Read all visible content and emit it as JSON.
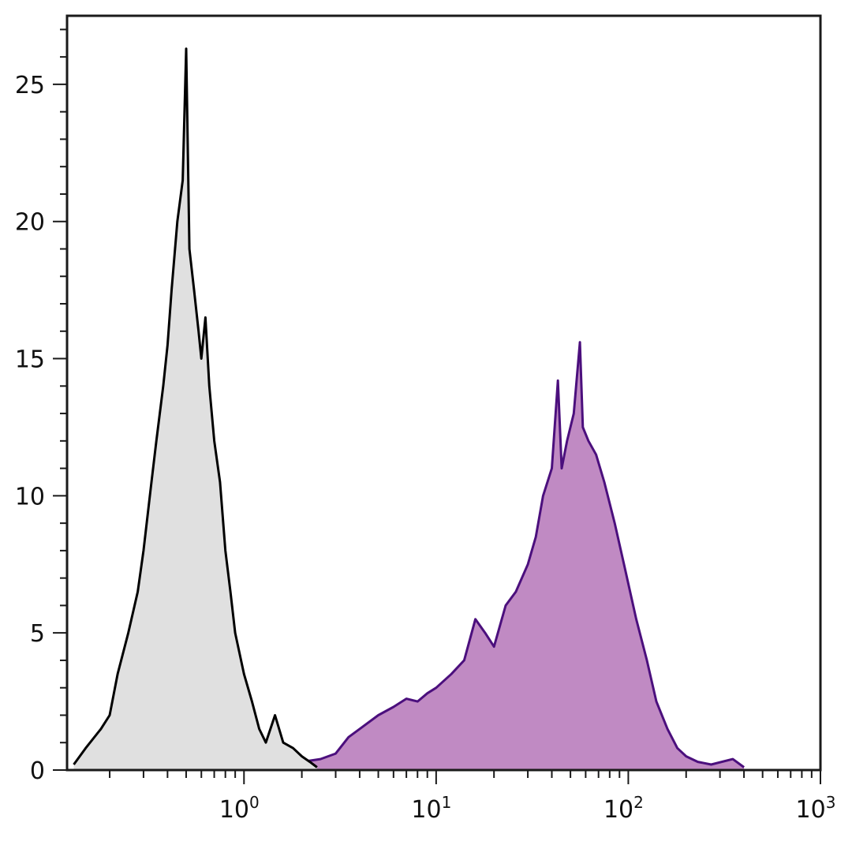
{
  "chart_data": {
    "type": "area",
    "title": "",
    "xlabel": "",
    "ylabel": "",
    "x_scale": "log",
    "xlim": [
      0.12,
      1000
    ],
    "ylim": [
      0,
      27.5
    ],
    "grid": false,
    "legend": "none",
    "x_tick_labels": [
      {
        "base": "10",
        "exp": "0",
        "value": 1
      },
      {
        "base": "10",
        "exp": "1",
        "value": 10
      },
      {
        "base": "10",
        "exp": "2",
        "value": 100
      },
      {
        "base": "10",
        "exp": "3",
        "value": 1000
      }
    ],
    "y_tick_labels": [
      {
        "label": "0",
        "value": 0
      },
      {
        "label": "5",
        "value": 5
      },
      {
        "label": "10",
        "value": 10
      },
      {
        "label": "15",
        "value": 15
      },
      {
        "label": "20",
        "value": 20
      },
      {
        "label": "25",
        "value": 25
      }
    ],
    "series": [
      {
        "key": "control",
        "color": "#000000",
        "fill": "#e0e0e0",
        "x": [
          0.13,
          0.15,
          0.18,
          0.2,
          0.22,
          0.25,
          0.28,
          0.3,
          0.33,
          0.35,
          0.38,
          0.4,
          0.42,
          0.45,
          0.48,
          0.5,
          0.52,
          0.55,
          0.58,
          0.6,
          0.63,
          0.66,
          0.7,
          0.75,
          0.8,
          0.85,
          0.9,
          1.0,
          1.1,
          1.2,
          1.3,
          1.45,
          1.6,
          1.8,
          2.0,
          2.2,
          2.4
        ],
        "y": [
          0.2,
          0.8,
          1.5,
          2.0,
          3.5,
          5.0,
          6.5,
          8.0,
          10.5,
          12.0,
          14.0,
          15.5,
          17.5,
          20.0,
          21.5,
          26.3,
          19.0,
          17.5,
          16.0,
          15.0,
          16.5,
          14.0,
          12.0,
          10.5,
          8.0,
          6.5,
          5.0,
          3.5,
          2.5,
          1.5,
          1.0,
          2.0,
          1.0,
          0.8,
          0.5,
          0.3,
          0.1
        ]
      },
      {
        "key": "stained",
        "color": "#4b0f7d",
        "fill": "#c08ac3",
        "x": [
          0.15,
          0.2,
          0.25,
          0.3,
          0.4,
          0.5,
          0.7,
          1.0,
          1.5,
          2.0,
          2.5,
          3.0,
          3.5,
          4.0,
          5.0,
          6.0,
          7.0,
          8.0,
          9.0,
          10.0,
          12.0,
          14.0,
          16.0,
          18.0,
          20.0,
          23.0,
          26.0,
          30.0,
          33.0,
          36.0,
          40.0,
          43.0,
          45.0,
          48.0,
          52.0,
          56.0,
          58.0,
          62.0,
          68.0,
          75.0,
          85.0,
          95.0,
          110.0,
          125.0,
          140.0,
          160.0,
          180.0,
          200.0,
          230.0,
          270.0,
          350.0,
          400.0
        ],
        "y": [
          0.3,
          0.5,
          0.6,
          0.5,
          0.7,
          0.6,
          0.5,
          0.5,
          0.4,
          0.3,
          0.4,
          0.6,
          1.2,
          1.5,
          2.0,
          2.3,
          2.6,
          2.5,
          2.8,
          3.0,
          3.5,
          4.0,
          5.5,
          5.0,
          4.5,
          6.0,
          6.5,
          7.5,
          8.5,
          10.0,
          11.0,
          14.2,
          11.0,
          12.0,
          13.0,
          15.6,
          12.5,
          12.0,
          11.5,
          10.5,
          9.0,
          7.5,
          5.5,
          4.0,
          2.5,
          1.5,
          0.8,
          0.5,
          0.3,
          0.2,
          0.4,
          0.1
        ]
      }
    ]
  }
}
